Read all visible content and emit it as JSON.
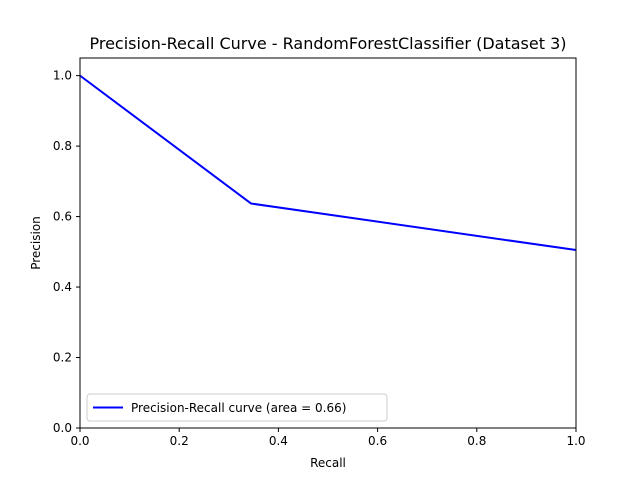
{
  "chart_data": {
    "type": "line",
    "title": "Precision-Recall Curve - RandomForestClassifier (Dataset 3)",
    "xlabel": "Recall",
    "ylabel": "Precision",
    "xlim": [
      0.0,
      1.0
    ],
    "ylim": [
      0.0,
      1.05
    ],
    "x_ticks": [
      "0.0",
      "0.2",
      "0.4",
      "0.6",
      "0.8",
      "1.0"
    ],
    "y_ticks": [
      "0.0",
      "0.2",
      "0.4",
      "0.6",
      "0.8",
      "1.0"
    ],
    "grid": false,
    "legend_position": "lower-left",
    "series": [
      {
        "name": "Precision-Recall curve (area = 0.66)",
        "color": "#0000ff",
        "x": [
          0.0,
          0.345,
          1.0
        ],
        "y": [
          1.0,
          0.637,
          0.505
        ]
      }
    ]
  }
}
